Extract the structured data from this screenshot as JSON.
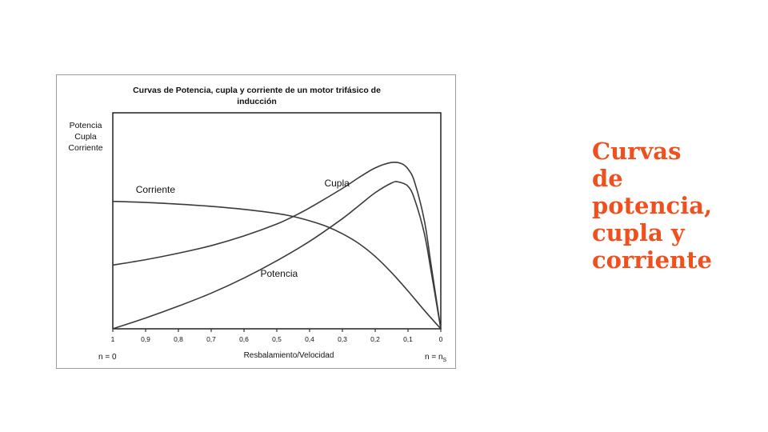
{
  "side_title": {
    "lines": [
      "Curvas",
      "de",
      "potencia,",
      "cupla y",
      "corriente"
    ]
  },
  "colors": {
    "side_title": "#f0501e",
    "curve": "#3a3a3a",
    "frame": "#9a9a9a"
  },
  "chart_data": {
    "type": "line",
    "title_lines": [
      "Curvas de Potencia, cupla y corriente de un motor trifásico de",
      "inducción"
    ],
    "ylabel_lines": [
      "Potencia",
      "Cupla",
      "Corriente"
    ],
    "xlabel": "Resbalamiento/Velocidad",
    "x_tick_labels": [
      "1",
      "0,9",
      "0,8",
      "0,7",
      "0,6",
      "0,5",
      "0,4",
      "0,3",
      "0,2",
      "0,1",
      "0"
    ],
    "x_ticks": [
      1,
      0.9,
      0.8,
      0.7,
      0.6,
      0.5,
      0.4,
      0.3,
      0.2,
      0.1,
      0
    ],
    "xlim": [
      1,
      0
    ],
    "ylim": [
      0,
      1
    ],
    "corner_left": "n = 0",
    "corner_right_main": "n = n",
    "corner_right_sub": "S",
    "grid": false,
    "y_tick_labels": false,
    "series": [
      {
        "name": "Corriente",
        "points": [
          [
            1,
            0.59
          ],
          [
            0.9,
            0.585
          ],
          [
            0.8,
            0.577
          ],
          [
            0.7,
            0.567
          ],
          [
            0.6,
            0.553
          ],
          [
            0.5,
            0.534
          ],
          [
            0.45,
            0.52
          ],
          [
            0.4,
            0.5
          ],
          [
            0.35,
            0.475
          ],
          [
            0.3,
            0.44
          ],
          [
            0.25,
            0.395
          ],
          [
            0.2,
            0.335
          ],
          [
            0.15,
            0.26
          ],
          [
            0.1,
            0.175
          ],
          [
            0.05,
            0.085
          ],
          [
            0,
            0
          ]
        ]
      },
      {
        "name": "Cupla",
        "points": [
          [
            1,
            0.295
          ],
          [
            0.9,
            0.32
          ],
          [
            0.8,
            0.35
          ],
          [
            0.7,
            0.385
          ],
          [
            0.6,
            0.43
          ],
          [
            0.5,
            0.485
          ],
          [
            0.45,
            0.52
          ],
          [
            0.4,
            0.56
          ],
          [
            0.3,
            0.65
          ],
          [
            0.25,
            0.7
          ],
          [
            0.2,
            0.745
          ],
          [
            0.15,
            0.77
          ],
          [
            0.12,
            0.765
          ],
          [
            0.1,
            0.74
          ],
          [
            0.08,
            0.68
          ],
          [
            0.05,
            0.5
          ],
          [
            0.03,
            0.3
          ],
          [
            0.01,
            0.1
          ],
          [
            0,
            0
          ]
        ]
      },
      {
        "name": "Potencia",
        "points": [
          [
            1,
            0
          ],
          [
            0.9,
            0.05
          ],
          [
            0.8,
            0.105
          ],
          [
            0.7,
            0.165
          ],
          [
            0.6,
            0.235
          ],
          [
            0.5,
            0.315
          ],
          [
            0.4,
            0.405
          ],
          [
            0.3,
            0.51
          ],
          [
            0.25,
            0.57
          ],
          [
            0.2,
            0.63
          ],
          [
            0.15,
            0.675
          ],
          [
            0.13,
            0.68
          ],
          [
            0.1,
            0.66
          ],
          [
            0.08,
            0.6
          ],
          [
            0.05,
            0.44
          ],
          [
            0.03,
            0.27
          ],
          [
            0.01,
            0.09
          ],
          [
            0,
            0
          ]
        ]
      }
    ]
  }
}
